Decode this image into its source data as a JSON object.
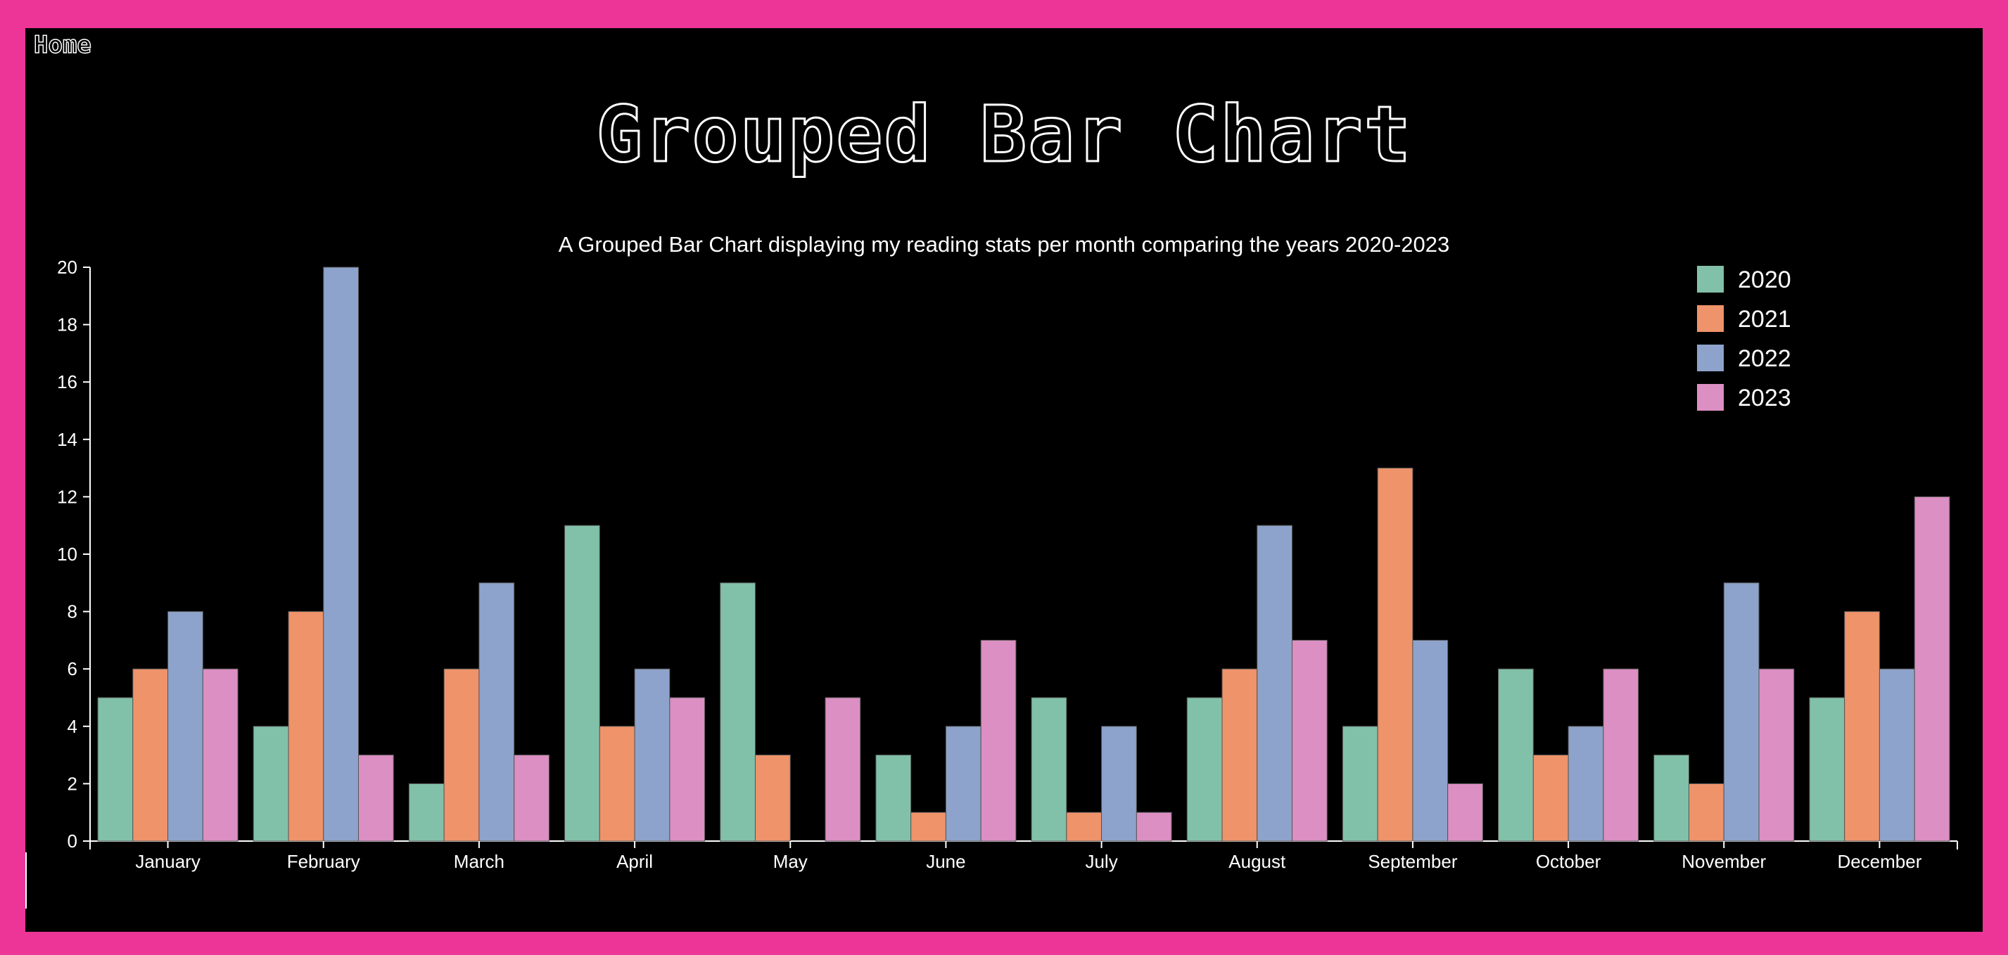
{
  "nav": {
    "home_label": "Home"
  },
  "chart_data": {
    "type": "bar",
    "title": "Grouped Bar Chart",
    "subtitle": "A Grouped Bar Chart displaying my reading stats per month comparing the years 2020-2023",
    "xlabel": "",
    "ylabel": "",
    "categories": [
      "January",
      "February",
      "March",
      "April",
      "May",
      "June",
      "July",
      "August",
      "September",
      "October",
      "November",
      "December"
    ],
    "series": [
      {
        "name": "2020",
        "color": "#82c1a9",
        "values": [
          5,
          4,
          2,
          11,
          9,
          3,
          5,
          5,
          4,
          6,
          3,
          5
        ]
      },
      {
        "name": "2021",
        "color": "#ef936b",
        "values": [
          6,
          8,
          6,
          4,
          3,
          1,
          1,
          6,
          13,
          3,
          2,
          8
        ]
      },
      {
        "name": "2022",
        "color": "#8ea3cb",
        "values": [
          8,
          20,
          9,
          6,
          0,
          4,
          4,
          11,
          7,
          4,
          9,
          6
        ]
      },
      {
        "name": "2023",
        "color": "#dc8fc2",
        "values": [
          6,
          3,
          3,
          5,
          5,
          7,
          1,
          7,
          2,
          6,
          6,
          12
        ]
      }
    ],
    "ylim": [
      0,
      20
    ],
    "yticks": [
      0,
      2,
      4,
      6,
      8,
      10,
      12,
      14,
      16,
      18,
      20
    ],
    "grid": false,
    "legend_position": "top-right"
  }
}
